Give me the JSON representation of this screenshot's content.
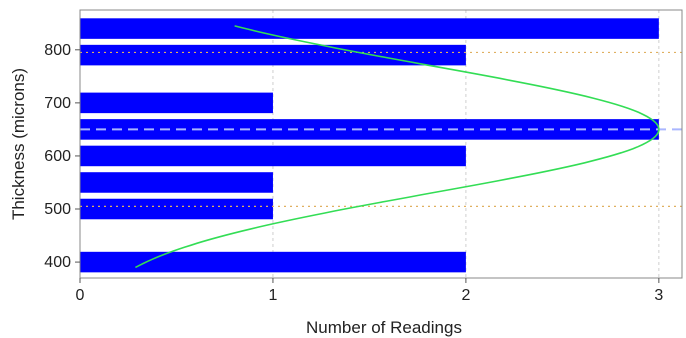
{
  "chart_data": {
    "type": "bar",
    "orientation": "horizontal",
    "xlabel": "Number of Readings",
    "ylabel": "Thickness (microns)",
    "xlim": [
      0,
      3.12
    ],
    "ylim": [
      370,
      875
    ],
    "xticks": [
      "0",
      "1",
      "2",
      "3"
    ],
    "xtick_values": [
      0,
      1,
      2,
      3
    ],
    "yticks": [
      "400",
      "500",
      "600",
      "700",
      "800"
    ],
    "ytick_values": [
      400,
      500,
      600,
      700,
      800
    ],
    "grid": true,
    "bin_height": 50,
    "bars": [
      {
        "center": 400,
        "count": 2
      },
      {
        "center": 500,
        "count": 1
      },
      {
        "center": 550,
        "count": 1
      },
      {
        "center": 600,
        "count": 2
      },
      {
        "center": 650,
        "count": 3
      },
      {
        "center": 700,
        "count": 1
      },
      {
        "center": 790,
        "count": 2
      },
      {
        "center": 840,
        "count": 3
      }
    ],
    "bar_color": "#0000ff",
    "normal_curve": {
      "mean": 650,
      "sd": 120,
      "peak": 3.0,
      "y_from": 390,
      "y_to": 845,
      "color": "#33dd55"
    },
    "mean_line": {
      "y": 650,
      "color": "#aab6ff",
      "style": "dashed"
    },
    "reference_lines": [
      {
        "y": 795,
        "color": "#e0b060",
        "style": "dotted"
      },
      {
        "y": 505,
        "color": "#e0b060",
        "style": "dotted"
      }
    ]
  }
}
